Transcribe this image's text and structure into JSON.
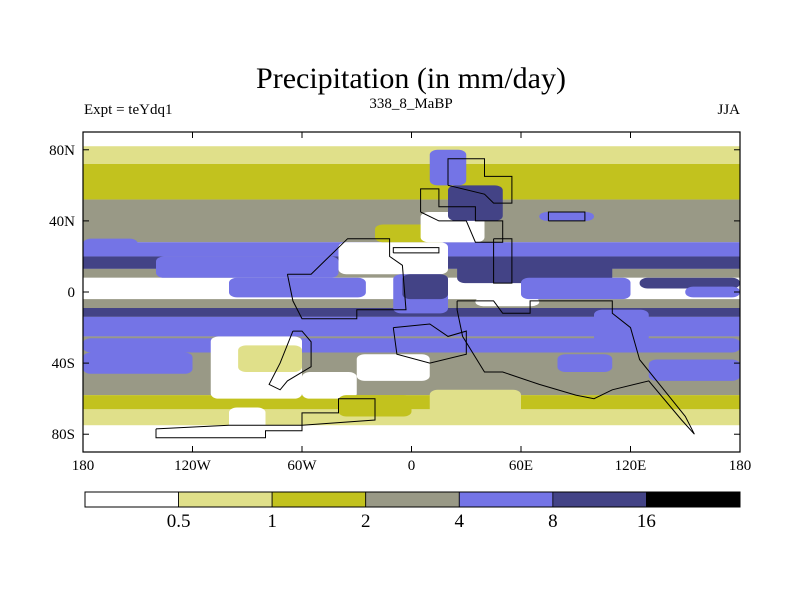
{
  "chart_data": {
    "type": "heatmap",
    "title": "Precipitation (in mm/day)",
    "left_label": "Expt = teYdq1",
    "center_label": "338_8_MaBP",
    "right_label": "JJA",
    "x_range": [
      -180,
      180
    ],
    "y_range": [
      -90,
      90
    ],
    "x_ticks": [
      {
        "value": -180,
        "label": "180"
      },
      {
        "value": -120,
        "label": "120W"
      },
      {
        "value": -60,
        "label": "60W"
      },
      {
        "value": 0,
        "label": "0"
      },
      {
        "value": 60,
        "label": "60E"
      },
      {
        "value": 120,
        "label": "120E"
      },
      {
        "value": 180,
        "label": "180"
      }
    ],
    "y_ticks": [
      {
        "value": 80,
        "label": "80N"
      },
      {
        "value": 40,
        "label": "40N"
      },
      {
        "value": 0,
        "label": "0"
      },
      {
        "value": -40,
        "label": "40S"
      },
      {
        "value": -80,
        "label": "80S"
      }
    ],
    "levels": [
      {
        "label": "",
        "color": "#ffffff"
      },
      {
        "label": "0.5",
        "color": "#e0e08a"
      },
      {
        "label": "1",
        "color": "#c2c21e"
      },
      {
        "label": "2",
        "color": "#999986"
      },
      {
        "label": "4",
        "color": "#7474e6"
      },
      {
        "label": "8",
        "color": "#434386"
      },
      {
        "label": "16",
        "color": "#000000"
      }
    ],
    "zonal_bands": [
      {
        "lat_top": 90,
        "lat_bottom": 82,
        "level": 0
      },
      {
        "lat_top": 82,
        "lat_bottom": 72,
        "level": 1
      },
      {
        "lat_top": 72,
        "lat_bottom": 52,
        "level": 2
      },
      {
        "lat_top": 52,
        "lat_bottom": 28,
        "level": 3
      },
      {
        "lat_top": 28,
        "lat_bottom": 20,
        "level": 4
      },
      {
        "lat_top": 20,
        "lat_bottom": 13,
        "level": 5
      },
      {
        "lat_top": 13,
        "lat_bottom": 8,
        "level": 3
      },
      {
        "lat_top": 8,
        "lat_bottom": -4,
        "level": 0
      },
      {
        "lat_top": -4,
        "lat_bottom": -9,
        "level": 3
      },
      {
        "lat_top": -9,
        "lat_bottom": -14,
        "level": 5
      },
      {
        "lat_top": -14,
        "lat_bottom": -25,
        "level": 4
      },
      {
        "lat_top": -25,
        "lat_bottom": -58,
        "level": 3
      },
      {
        "lat_top": -58,
        "lat_bottom": -66,
        "level": 2
      },
      {
        "lat_top": -66,
        "lat_bottom": -75,
        "level": 1
      },
      {
        "lat_top": -75,
        "lat_bottom": -90,
        "level": 0
      }
    ],
    "patches": [
      {
        "lon_range": [
          -180,
          180
        ],
        "lat_range": [
          -34,
          -26
        ],
        "level": 4
      },
      {
        "lon_range": [
          -180,
          -120
        ],
        "lat_range": [
          -46,
          -34
        ],
        "level": 4
      },
      {
        "lon_range": [
          -180,
          -150
        ],
        "lat_range": [
          24,
          30
        ],
        "level": 4
      },
      {
        "lon_range": [
          -140,
          -40
        ],
        "lat_range": [
          8,
          20
        ],
        "level": 4
      },
      {
        "lon_range": [
          -100,
          -25
        ],
        "lat_range": [
          -3,
          8
        ],
        "level": 4
      },
      {
        "lon_range": [
          -40,
          20
        ],
        "lat_range": [
          10,
          28
        ],
        "level": 0
      },
      {
        "lon_range": [
          -20,
          20
        ],
        "lat_range": [
          28,
          38
        ],
        "level": 2
      },
      {
        "lon_range": [
          -10,
          20
        ],
        "lat_range": [
          -12,
          10
        ],
        "level": 4
      },
      {
        "lon_range": [
          -5,
          20
        ],
        "lat_range": [
          -4,
          10
        ],
        "level": 5
      },
      {
        "lon_range": [
          5,
          40
        ],
        "lat_range": [
          28,
          45
        ],
        "level": 0
      },
      {
        "lon_range": [
          10,
          30
        ],
        "lat_range": [
          60,
          80
        ],
        "level": 4
      },
      {
        "lon_range": [
          20,
          50
        ],
        "lat_range": [
          40,
          60
        ],
        "level": 5
      },
      {
        "lon_range": [
          25,
          110
        ],
        "lat_range": [
          5,
          20
        ],
        "level": 5
      },
      {
        "lon_range": [
          70,
          100
        ],
        "lat_range": [
          40,
          45
        ],
        "level": 4
      },
      {
        "lon_range": [
          35,
          70
        ],
        "lat_range": [
          -8,
          -3
        ],
        "level": 0
      },
      {
        "lon_range": [
          60,
          120
        ],
        "lat_range": [
          -4,
          8
        ],
        "level": 4
      },
      {
        "lon_range": [
          -110,
          -60
        ],
        "lat_range": [
          -60,
          -25
        ],
        "level": 0
      },
      {
        "lon_range": [
          -60,
          -30
        ],
        "lat_range": [
          -60,
          -45
        ],
        "level": 0
      },
      {
        "lon_range": [
          -30,
          10
        ],
        "lat_range": [
          -50,
          -35
        ],
        "level": 0
      },
      {
        "lon_range": [
          -95,
          -60
        ],
        "lat_range": [
          -45,
          -30
        ],
        "level": 1
      },
      {
        "lon_range": [
          -100,
          -80
        ],
        "lat_range": [
          -80,
          -65
        ],
        "level": 0
      },
      {
        "lon_range": [
          -40,
          0
        ],
        "lat_range": [
          -70,
          -58
        ],
        "level": 2
      },
      {
        "lon_range": [
          10,
          60
        ],
        "lat_range": [
          -70,
          -55
        ],
        "level": 1
      },
      {
        "lon_range": [
          130,
          180
        ],
        "lat_range": [
          -50,
          -38
        ],
        "level": 4
      },
      {
        "lon_range": [
          125,
          180
        ],
        "lat_range": [
          2,
          8
        ],
        "level": 5
      },
      {
        "lon_range": [
          150,
          180
        ],
        "lat_range": [
          -3,
          3
        ],
        "level": 4
      },
      {
        "lon_range": [
          100,
          130
        ],
        "lat_range": [
          -30,
          -10
        ],
        "level": 4
      },
      {
        "lon_range": [
          80,
          110
        ],
        "lat_range": [
          -45,
          -35
        ],
        "level": 4
      }
    ],
    "coastlines": [
      [
        [
          -140,
          -77
        ],
        [
          -140,
          -82
        ],
        [
          -80,
          -82
        ],
        [
          -80,
          -78
        ],
        [
          -60,
          -78
        ],
        [
          -60,
          -68
        ],
        [
          -40,
          -68
        ],
        [
          -40,
          -60
        ],
        [
          -20,
          -60
        ],
        [
          -20,
          -72
        ],
        [
          -60,
          -75
        ],
        [
          -100,
          -75
        ],
        [
          -140,
          -77
        ]
      ],
      [
        [
          -68,
          10
        ],
        [
          -55,
          10
        ],
        [
          -45,
          20
        ],
        [
          -35,
          30
        ],
        [
          -12,
          30
        ],
        [
          -12,
          20
        ],
        [
          -5,
          15
        ],
        [
          -3,
          -10
        ],
        [
          -30,
          -10
        ],
        [
          -30,
          -15
        ],
        [
          -60,
          -15
        ],
        [
          -65,
          -5
        ],
        [
          -68,
          10
        ]
      ],
      [
        [
          -65,
          -22
        ],
        [
          -60,
          -22
        ],
        [
          -55,
          -28
        ],
        [
          -55,
          -42
        ],
        [
          -68,
          -50
        ],
        [
          -72,
          -55
        ],
        [
          -78,
          -52
        ],
        [
          -72,
          -40
        ],
        [
          -65,
          -22
        ]
      ],
      [
        [
          -10,
          -20
        ],
        [
          10,
          -18
        ],
        [
          20,
          -25
        ],
        [
          30,
          -22
        ],
        [
          30,
          -35
        ],
        [
          10,
          -40
        ],
        [
          -8,
          -35
        ],
        [
          -10,
          -20
        ]
      ],
      [
        [
          5,
          45
        ],
        [
          5,
          58
        ],
        [
          15,
          58
        ],
        [
          15,
          48
        ],
        [
          35,
          48
        ],
        [
          35,
          40
        ],
        [
          50,
          40
        ],
        [
          50,
          28
        ],
        [
          35,
          28
        ],
        [
          30,
          40
        ],
        [
          15,
          40
        ],
        [
          5,
          45
        ]
      ],
      [
        [
          20,
          60
        ],
        [
          20,
          75
        ],
        [
          40,
          75
        ],
        [
          40,
          65
        ],
        [
          55,
          65
        ],
        [
          55,
          50
        ],
        [
          45,
          50
        ],
        [
          40,
          55
        ],
        [
          20,
          60
        ]
      ],
      [
        [
          25,
          -5
        ],
        [
          45,
          -5
        ],
        [
          50,
          -12
        ],
        [
          65,
          -12
        ],
        [
          65,
          -5
        ],
        [
          110,
          -5
        ],
        [
          110,
          -12
        ],
        [
          120,
          -20
        ],
        [
          125,
          -38
        ],
        [
          150,
          -70
        ],
        [
          155,
          -80
        ],
        [
          148,
          -72
        ],
        [
          130,
          -50
        ],
        [
          110,
          -55
        ],
        [
          100,
          -60
        ],
        [
          90,
          -58
        ],
        [
          70,
          -52
        ],
        [
          50,
          -45
        ],
        [
          40,
          -45
        ],
        [
          28,
          -25
        ],
        [
          25,
          -10
        ],
        [
          25,
          -5
        ]
      ],
      [
        [
          45,
          30
        ],
        [
          55,
          30
        ],
        [
          55,
          5
        ],
        [
          45,
          5
        ],
        [
          45,
          20
        ],
        [
          45,
          30
        ]
      ],
      [
        [
          75,
          40
        ],
        [
          95,
          40
        ],
        [
          95,
          45
        ],
        [
          75,
          45
        ],
        [
          75,
          40
        ]
      ],
      [
        [
          -10,
          22
        ],
        [
          15,
          22
        ],
        [
          15,
          25
        ],
        [
          -10,
          25
        ],
        [
          -10,
          22
        ]
      ]
    ]
  }
}
